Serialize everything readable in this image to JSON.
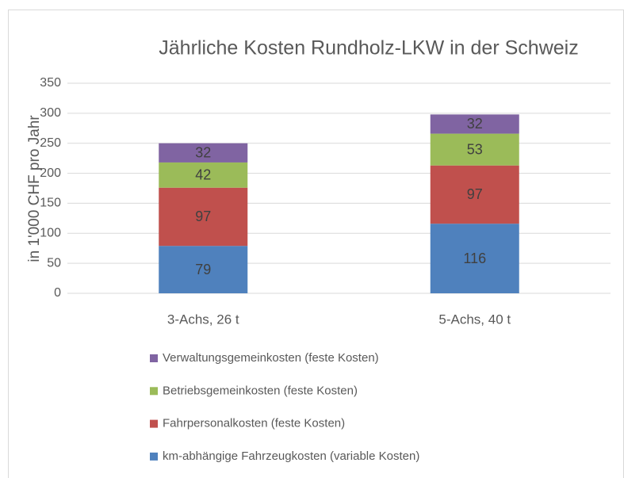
{
  "chart_data": {
    "type": "stacked_bar",
    "title": "Jährliche Kosten Rundholz-LKW in der Schweiz",
    "y_label": "in 1'000 CHF pro Jahr",
    "categories": [
      "3-Achs, 26 t",
      "5-Achs, 40 t"
    ],
    "series": [
      {
        "name": "km-abhängige Fahrzeugkosten (variable Kosten)",
        "color": "#4f81bd",
        "values": [
          79,
          116
        ]
      },
      {
        "name": "Fahrpersonalkosten (feste Kosten)",
        "color": "#c0504d",
        "values": [
          97,
          97
        ]
      },
      {
        "name": "Betriebsgemeinkosten (feste Kosten)",
        "color": "#9bbb59",
        "values": [
          42,
          53
        ]
      },
      {
        "name": "Verwaltungsgemeinkosten (feste Kosten)",
        "color": "#8064a2",
        "values": [
          32,
          32
        ]
      }
    ],
    "ylim": [
      0,
      350
    ],
    "yticks": [
      0,
      50,
      100,
      150,
      200,
      250,
      300,
      350
    ],
    "grid": true,
    "legend": "bottom"
  }
}
